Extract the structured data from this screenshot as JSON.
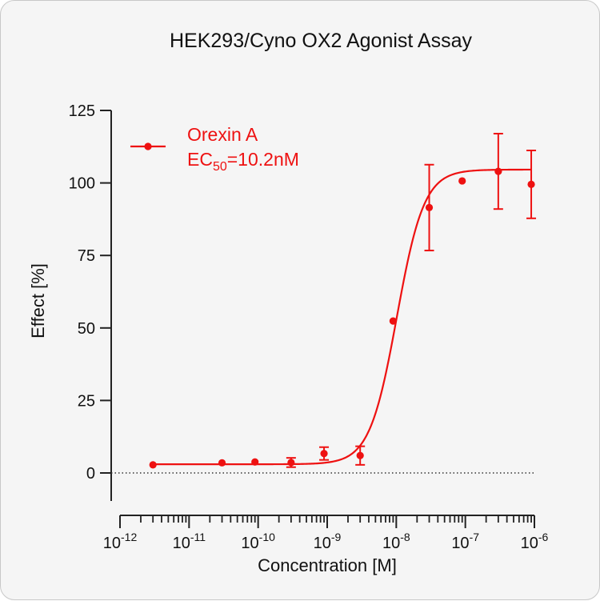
{
  "chart_data": {
    "type": "scatter",
    "title": "HEK293/Cyno OX2 Agonist Assay",
    "xlabel": "Concentration [M]",
    "ylabel": "Effect  [%]",
    "x_scale": "log",
    "xlim": [
      1e-12,
      1e-06
    ],
    "ylim": [
      -10,
      125
    ],
    "y_ticks": [
      "0",
      "25",
      "50",
      "75",
      "100",
      "125"
    ],
    "x_ticks": [
      {
        "base": "10",
        "exp": "-12"
      },
      {
        "base": "10",
        "exp": "-11"
      },
      {
        "base": "10",
        "exp": "-10"
      },
      {
        "base": "10",
        "exp": "-9"
      },
      {
        "base": "10",
        "exp": "-8"
      },
      {
        "base": "10",
        "exp": "-7"
      },
      {
        "base": "10",
        "exp": "-6"
      }
    ],
    "series": [
      {
        "name": "Orexin A",
        "color": "#ee1111",
        "points": [
          {
            "x": 3e-12,
            "y": 2.8,
            "err": 0
          },
          {
            "x": 3e-11,
            "y": 3.5,
            "err": 0
          },
          {
            "x": 9e-11,
            "y": 3.8,
            "err": 0
          },
          {
            "x": 3e-10,
            "y": 3.6,
            "err": 1.6
          },
          {
            "x": 9e-10,
            "y": 6.7,
            "err": 2.2
          },
          {
            "x": 3e-09,
            "y": 6.0,
            "err": 3.2
          },
          {
            "x": 9e-09,
            "y": 52.4,
            "err": 0
          },
          {
            "x": 3e-08,
            "y": 91.5,
            "err": 14.8
          },
          {
            "x": 9e-08,
            "y": 100.7,
            "err": 0
          },
          {
            "x": 3e-07,
            "y": 104.0,
            "err": 13.0
          },
          {
            "x": 9e-07,
            "y": 99.5,
            "err": 11.7
          }
        ],
        "fit": {
          "bottom": 3.0,
          "top": 104.6,
          "ec50": 1.02e-08,
          "hill": 2.2
        }
      }
    ],
    "legend": {
      "position": "top-left",
      "label": "Orexin A",
      "ec_prefix": "EC",
      "ec_sub": "50",
      "ec_value": "=10.2nM"
    },
    "zero_line": "dotted"
  }
}
